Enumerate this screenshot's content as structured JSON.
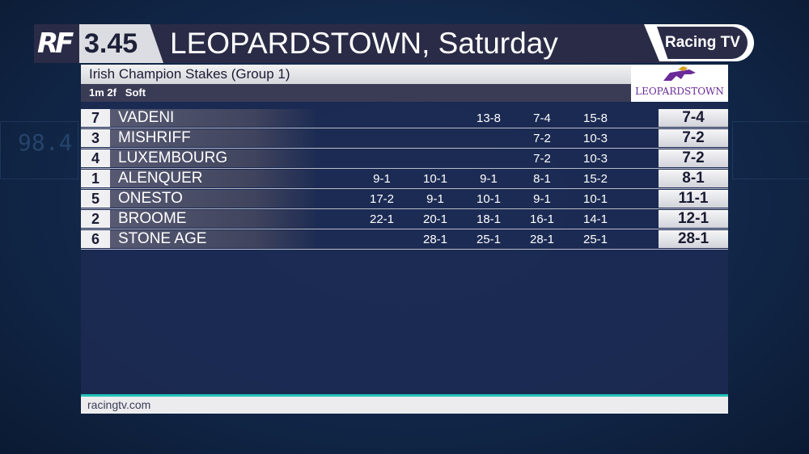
{
  "header": {
    "logo": "RF",
    "race_time": "3.45",
    "title": "LEOPARDSTOWN, Saturday",
    "brand": "Racing TV"
  },
  "race": {
    "name": "Irish Champion Stakes (Group 1)",
    "conditions": "1m 2f   Soft",
    "course_logo": "LEOPARDSTOWN"
  },
  "runners": [
    {
      "number": "7",
      "name": "VADENI",
      "history": [
        "",
        "",
        "13-8",
        "7-4",
        "15-8"
      ],
      "current": "7-4"
    },
    {
      "number": "3",
      "name": "MISHRIFF",
      "history": [
        "",
        "",
        "",
        "7-2",
        "10-3"
      ],
      "current": "7-2"
    },
    {
      "number": "4",
      "name": "LUXEMBOURG",
      "history": [
        "",
        "",
        "",
        "7-2",
        "10-3"
      ],
      "current": "7-2"
    },
    {
      "number": "1",
      "name": "ALENQUER",
      "history": [
        "9-1",
        "10-1",
        "9-1",
        "8-1",
        "15-2"
      ],
      "current": "8-1"
    },
    {
      "number": "5",
      "name": "ONESTO",
      "history": [
        "17-2",
        "9-1",
        "10-1",
        "9-1",
        "10-1"
      ],
      "current": "11-1"
    },
    {
      "number": "2",
      "name": "BROOME",
      "history": [
        "22-1",
        "20-1",
        "18-1",
        "16-1",
        "14-1"
      ],
      "current": "12-1"
    },
    {
      "number": "6",
      "name": "STONE AGE",
      "history": [
        "",
        "28-1",
        "25-1",
        "28-1",
        "25-1"
      ],
      "current": "28-1"
    }
  ],
  "footer": {
    "url": "racingtv.com"
  },
  "background": {
    "readout": "98.4"
  },
  "colors": {
    "accent": "#24c4b8",
    "header": "#2a2c47",
    "panel": "#1c2a52"
  }
}
